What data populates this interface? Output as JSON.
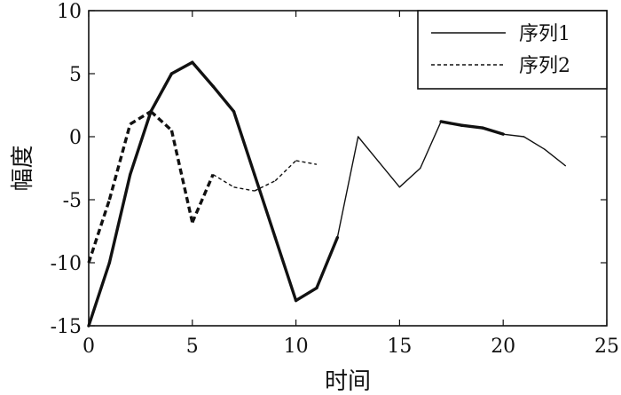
{
  "chart_data": {
    "type": "line",
    "xlabel": "时间",
    "ylabel": "幅度",
    "xlim": [
      0,
      25
    ],
    "ylim": [
      -15,
      10
    ],
    "x_ticks": [
      0,
      5,
      10,
      15,
      20,
      25
    ],
    "y_ticks": [
      -15,
      -10,
      -5,
      0,
      5,
      10
    ],
    "grid": false,
    "legend_position": "top-right",
    "series": [
      {
        "name": "序列1",
        "style": "solid",
        "color": "#111111",
        "x": [
          0,
          1,
          2,
          3,
          4,
          5,
          6,
          7,
          8,
          9,
          10,
          11,
          12,
          13,
          14,
          15,
          16,
          17,
          18,
          19,
          20,
          21,
          22,
          23
        ],
        "y": [
          -15,
          -10,
          -3,
          2,
          5,
          5.9,
          4,
          2,
          -3,
          -8,
          -13,
          -12,
          -8,
          0,
          -2,
          -4,
          -2.5,
          1.2,
          0.9,
          0.7,
          0.2,
          0,
          -1,
          -2.3
        ],
        "thick_ranges": [
          [
            0,
            12
          ],
          [
            17,
            20
          ]
        ]
      },
      {
        "name": "序列2",
        "style": "dotted",
        "color": "#111111",
        "x": [
          0,
          1,
          2,
          3,
          4,
          5,
          6,
          7,
          8,
          9,
          10,
          11
        ],
        "y": [
          -10,
          -5,
          1,
          2,
          0.5,
          -6.8,
          -3,
          -4,
          -4.3,
          -3.5,
          -1.9,
          -2.2
        ],
        "thick_ranges": [
          [
            0,
            6
          ]
        ]
      }
    ]
  }
}
